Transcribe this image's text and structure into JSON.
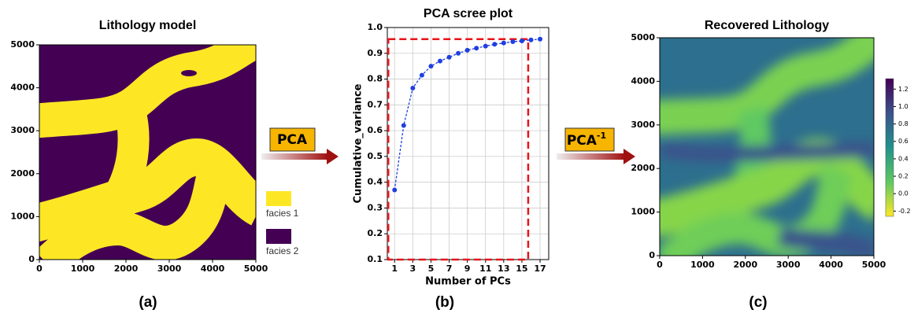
{
  "chart_data": [
    {
      "type": "map",
      "title": "Lithology model",
      "caption": "(a)",
      "xlim": [
        0,
        5000
      ],
      "ylim": [
        0,
        5000
      ],
      "xticks": [
        0,
        1000,
        2000,
        3000,
        4000,
        5000
      ],
      "yticks": [
        0,
        1000,
        2000,
        3000,
        4000,
        5000
      ],
      "legend": [
        {
          "name": "facies 1",
          "color": "#fde725"
        },
        {
          "name": "facies 2",
          "color": "#440154"
        }
      ]
    },
    {
      "type": "line",
      "title": "PCA scree plot",
      "caption": "(b)",
      "xlabel": "Number of PCs",
      "ylabel": "Cumulative_variance",
      "color": "#1f3fe0",
      "grid": true,
      "x": [
        1,
        2,
        3,
        4,
        5,
        6,
        7,
        8,
        9,
        10,
        11,
        12,
        13,
        14,
        15,
        16,
        17
      ],
      "values": [
        0.37,
        0.62,
        0.765,
        0.815,
        0.85,
        0.87,
        0.885,
        0.9,
        0.912,
        0.92,
        0.928,
        0.935,
        0.94,
        0.945,
        0.948,
        0.952,
        0.955
      ],
      "xlim": [
        0.2,
        17.95
      ],
      "ylim": [
        0.1,
        1.0
      ],
      "xticks": [
        1,
        3,
        5,
        7,
        9,
        11,
        13,
        15,
        17
      ],
      "yticks": [
        0.1,
        0.2,
        0.3,
        0.4,
        0.5,
        0.6,
        0.7,
        0.8,
        0.9,
        {
          "value": 1.0,
          "label": "1.0"
        }
      ],
      "highlight": {
        "x": [
          1,
          15
        ],
        "y": [
          0.1,
          0.955
        ],
        "color": "#e8141a"
      }
    },
    {
      "type": "heatmap",
      "title": "Recovered Lithology",
      "caption": "(c)",
      "xlim": [
        0,
        5000
      ],
      "ylim": [
        0,
        5000
      ],
      "xticks": [
        0,
        1000,
        2000,
        3000,
        4000,
        5000
      ],
      "yticks": [
        0,
        1000,
        2000,
        3000,
        4000,
        5000
      ],
      "clim": [
        -0.26,
        1.32
      ],
      "cticks": [
        -0.2,
        {
          "value": 0,
          "label": "0.0"
        },
        0.2,
        0.4,
        0.6,
        0.8,
        {
          "value": 1.0,
          "label": "1.0"
        },
        1.2
      ],
      "colormap": [
        "#fde725",
        "#5ec962",
        "#21918c",
        "#3b528b",
        "#440154"
      ]
    }
  ],
  "arrows": [
    {
      "label": "PCA",
      "color": "#f7b500"
    },
    {
      "label": "PCA",
      "superscript": "-1",
      "color": "#f7b500"
    }
  ]
}
